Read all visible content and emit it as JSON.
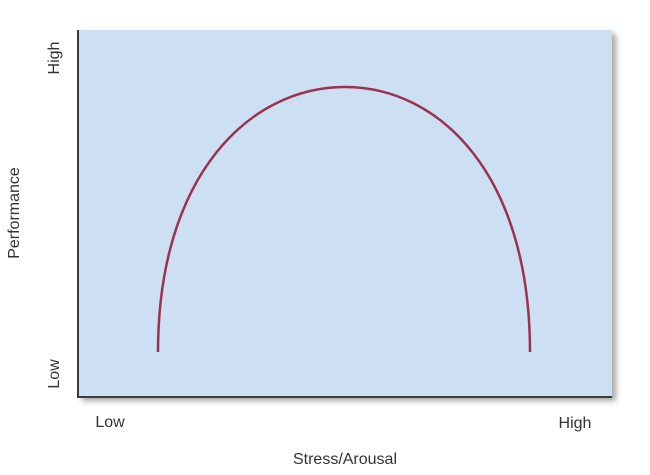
{
  "diagram": {
    "y_axis": {
      "title": "Performance",
      "low": "Low",
      "high": "High"
    },
    "x_axis": {
      "title": "Stress/Arousal",
      "low": "Low",
      "high": "High"
    }
  }
}
